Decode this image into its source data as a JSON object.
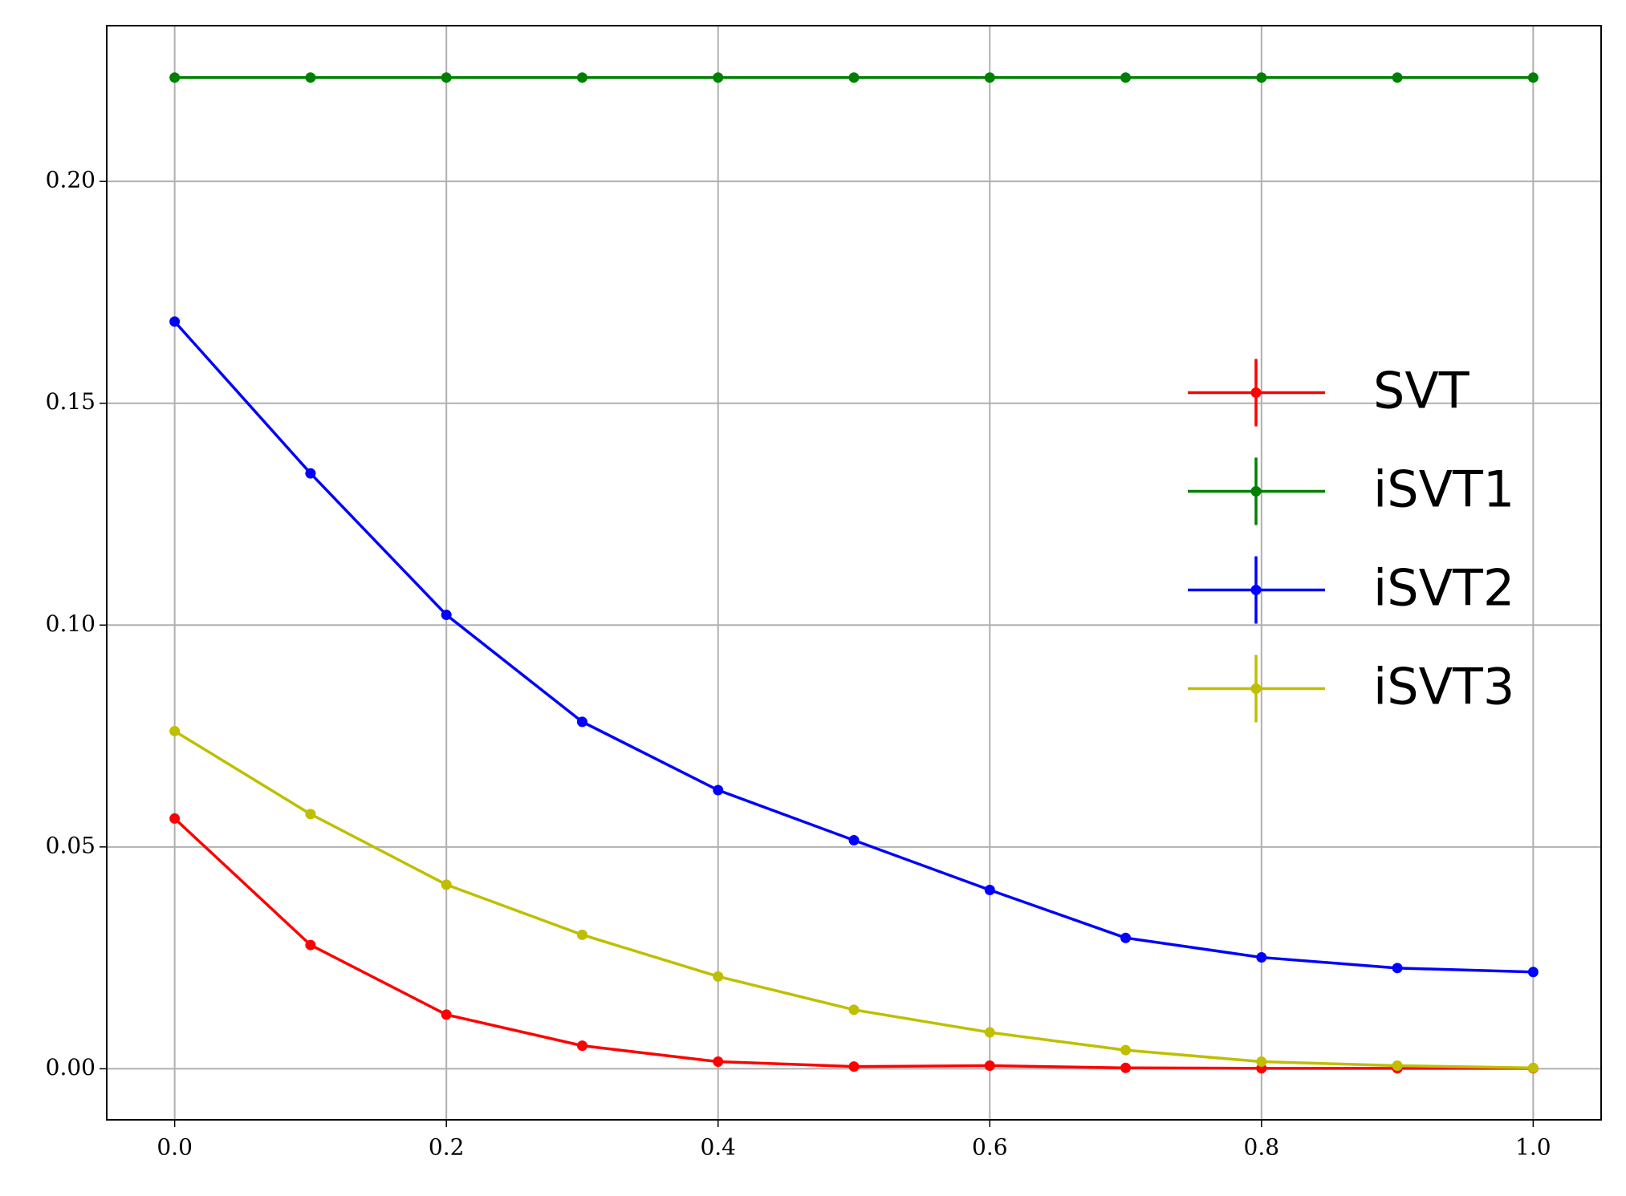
{
  "chart_data": {
    "type": "line",
    "x": [
      0,
      0.1,
      0.2,
      0.3,
      0.4,
      0.5,
      0.6,
      0.7,
      0.8,
      0.9,
      1.0
    ],
    "series": [
      {
        "name": "SVT",
        "color": "#ff0000",
        "values": [
          0.0564,
          0.0279,
          0.0122,
          0.0052,
          0.0016,
          0.0005,
          0.0007,
          0.0002,
          0.0001,
          0.0001,
          0.0001
        ]
      },
      {
        "name": "iSVT1",
        "color": "#008000",
        "values": [
          0.2234,
          0.2234,
          0.2234,
          0.2234,
          0.2234,
          0.2234,
          0.2234,
          0.2234,
          0.2234,
          0.2234,
          0.2234
        ]
      },
      {
        "name": "iSVT2",
        "color": "#0000ff",
        "values": [
          0.1684,
          0.1342,
          0.1023,
          0.0782,
          0.0628,
          0.0515,
          0.0403,
          0.0295,
          0.0251,
          0.0227,
          0.0218
        ]
      },
      {
        "name": "iSVT3",
        "color": "#bfbf00",
        "values": [
          0.0761,
          0.0574,
          0.0415,
          0.0302,
          0.0208,
          0.0133,
          0.0082,
          0.0042,
          0.0016,
          0.0007,
          0.0002
        ]
      }
    ],
    "xlim": [
      -0.05,
      1.05
    ],
    "ylim": [
      -0.0115,
      0.2351
    ],
    "xticks": [
      {
        "value": 0,
        "label": "0.0"
      },
      0.2,
      0.4,
      0.6,
      0.8,
      {
        "value": 1.0,
        "label": "1.0"
      }
    ],
    "yticks": [
      {
        "value": 0,
        "label": "0.00"
      },
      {
        "value": 0.05,
        "label": "0.05"
      },
      {
        "value": 0.1,
        "label": "0.10"
      },
      {
        "value": 0.15,
        "label": "0.15"
      },
      {
        "value": 0.2,
        "label": "0.20"
      }
    ],
    "grid": true,
    "legend": "center right"
  }
}
